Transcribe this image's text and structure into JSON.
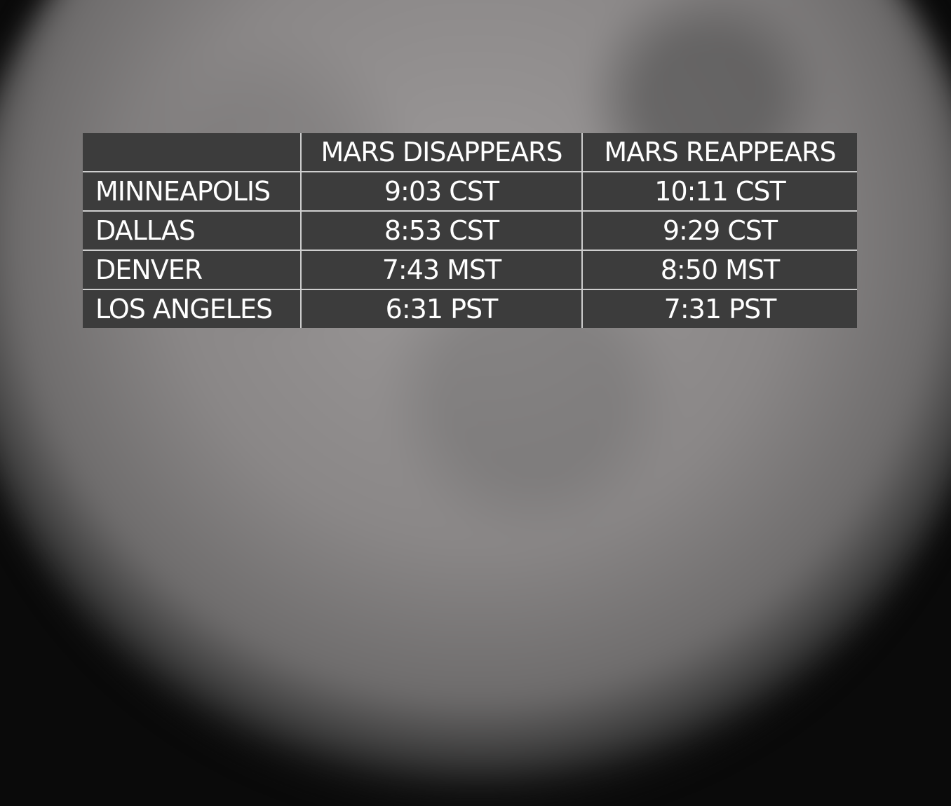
{
  "table": {
    "headers": [
      "",
      "MARS DISAPPEARS",
      "MARS REAPPEARS"
    ],
    "rows": [
      {
        "city": "MINNEAPOLIS",
        "disappears": "9:03 CST",
        "reappears": "10:11 CST"
      },
      {
        "city": "DALLAS",
        "disappears": "8:53 CST",
        "reappears": "9:29 CST"
      },
      {
        "city": "DENVER",
        "disappears": "7:43 MST",
        "reappears": "8:50 MST"
      },
      {
        "city": "LOS ANGELES",
        "disappears": "6:31 PST",
        "reappears": "7:31 PST"
      }
    ]
  }
}
